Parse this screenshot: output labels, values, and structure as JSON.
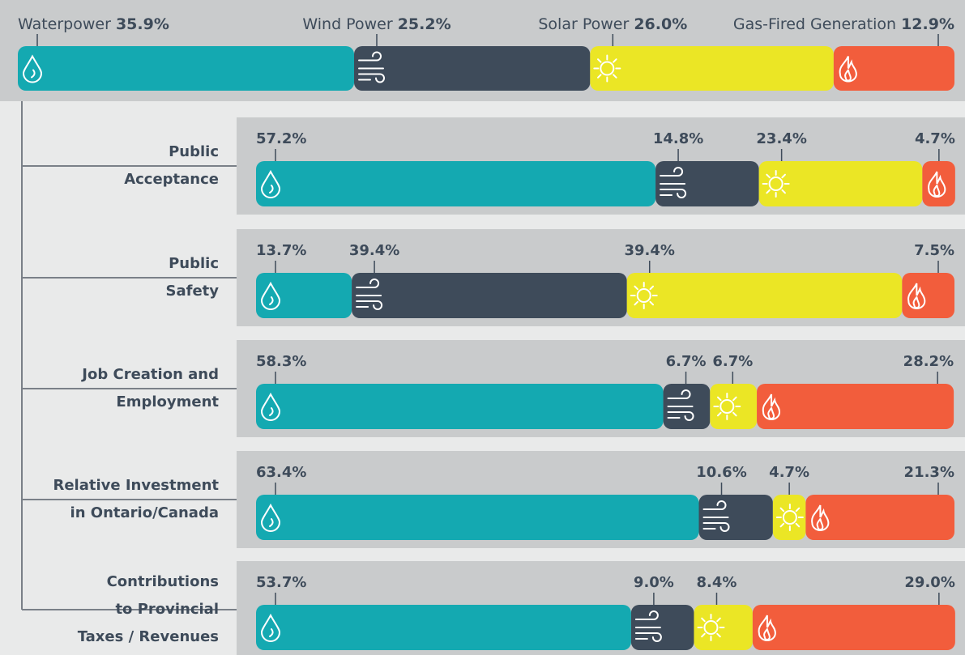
{
  "chart_data": [
    {
      "type": "bar",
      "stacked": true,
      "orientation": "horizontal",
      "xlim": [
        0,
        100
      ],
      "categories": [
        null
      ],
      "series": [
        {
          "name": "Waterpower",
          "color": "#14a9b1",
          "values": [
            35.9
          ],
          "value_labels": [
            "35.9%"
          ]
        },
        {
          "name": "Wind Power",
          "color": "#3e4b5a",
          "values": [
            25.2
          ],
          "value_labels": [
            "25.2%"
          ]
        },
        {
          "name": "Solar Power",
          "color": "#ebe625",
          "values": [
            26.0
          ],
          "value_labels": [
            "26.0%"
          ]
        },
        {
          "name": "Gas-Fired Generation",
          "color": "#f25d3c",
          "values": [
            12.9
          ],
          "value_labels": [
            "12.9%"
          ]
        }
      ]
    },
    {
      "type": "bar",
      "stacked": true,
      "orientation": "horizontal",
      "xlim": [
        0,
        100
      ],
      "categories": [
        "Public\nAcceptance",
        "Public\nSafety",
        "Job Creation and\nEmployment",
        "Relative Investment\nin Ontario/Canada",
        "Contributions\nto Provincial\nTaxes / Revenues"
      ],
      "series": [
        {
          "name": "Waterpower",
          "color": "#14a9b1",
          "values": [
            57.2,
            13.7,
            58.3,
            63.4,
            53.7
          ],
          "value_labels": [
            "57.2%",
            "13.7%",
            "58.3%",
            "63.4%",
            "53.7%"
          ]
        },
        {
          "name": "Wind Power",
          "color": "#3e4b5a",
          "values": [
            14.8,
            39.4,
            6.7,
            10.6,
            9.0
          ],
          "value_labels": [
            "14.8%",
            "39.4%",
            "6.7%",
            "10.6%",
            "9.0%"
          ]
        },
        {
          "name": "Solar Power",
          "color": "#ebe625",
          "values": [
            23.4,
            39.4,
            6.7,
            4.7,
            8.4
          ],
          "value_labels": [
            "23.4%",
            "39.4%",
            "6.7%",
            "4.7%",
            "8.4%"
          ]
        },
        {
          "name": "Gas-Fired Generation",
          "color": "#f25d3c",
          "values": [
            4.7,
            7.5,
            28.2,
            21.3,
            29.0
          ],
          "value_labels": [
            "4.7%",
            "7.5%",
            "28.2%",
            "21.3%",
            "29.0%"
          ]
        }
      ]
    }
  ]
}
